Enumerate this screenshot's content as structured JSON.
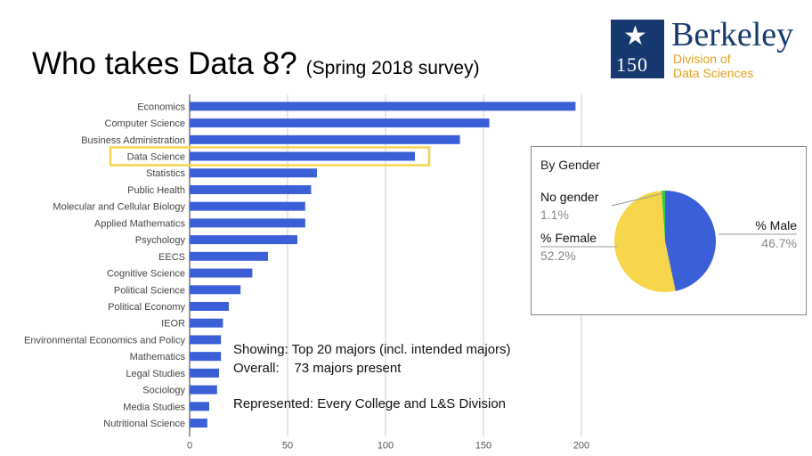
{
  "title": "Who takes Data 8?",
  "subtitle": "(Spring 2018 survey)",
  "logo": {
    "name": "Berkeley",
    "number": "150",
    "line1": "Division of",
    "line2": "Data Sciences"
  },
  "notes": {
    "line1": "Showing: Top 20 majors (incl. intended majors)",
    "line2": "Overall:    73 majors present",
    "line3": "Represented: Every College and L&S Division"
  },
  "chart_data": [
    {
      "type": "bar",
      "orientation": "horizontal",
      "categories": [
        "Economics",
        "Computer Science",
        "Business Administration",
        "Data Science",
        "Statistics",
        "Public Health",
        "Molecular and Cellular Biology",
        "Applied Mathematics",
        "Psychology",
        "EECS",
        "Cognitive Science",
        "Political Science",
        "Political Economy",
        "IEOR",
        "Environmental Economics and Policy",
        "Mathematics",
        "Legal Studies",
        "Sociology",
        "Media Studies",
        "Nutritional Science"
      ],
      "values": [
        197,
        153,
        138,
        115,
        65,
        62,
        59,
        59,
        55,
        40,
        32,
        26,
        20,
        17,
        16,
        16,
        15,
        14,
        10,
        9
      ],
      "highlighted": "Data Science",
      "xlim": [
        0,
        200
      ],
      "xticks": [
        0,
        50,
        100,
        150,
        200
      ],
      "bar_color": "#3b5fd6",
      "highlight_color": "#f6d54b",
      "grid": true
    },
    {
      "type": "pie",
      "title": "By Gender",
      "slices": [
        {
          "label": "% Male",
          "value": 46.7,
          "display": "46.7%",
          "color": "#3b5fd6"
        },
        {
          "label": "% Female",
          "value": 52.2,
          "display": "52.2%",
          "color": "#f6d54b"
        },
        {
          "label": "No gender",
          "value": 1.1,
          "display": "1.1%",
          "color": "#2ecc40"
        }
      ]
    }
  ]
}
